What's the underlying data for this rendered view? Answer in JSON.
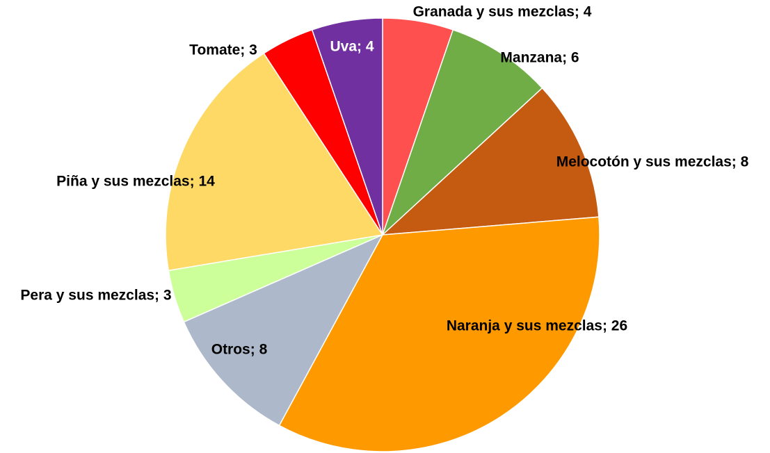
{
  "chart_data": {
    "type": "pie",
    "categories": [
      "Granada y sus mezclas",
      "Manzana",
      "Melocotón y sus mezclas",
      "Naranja y sus mezclas",
      "Otros",
      "Pera y sus mezclas",
      "Piña y sus mezclas",
      "Tomate",
      "Uva"
    ],
    "values": [
      4,
      6,
      8,
      26,
      8,
      3,
      14,
      3,
      4
    ],
    "value_labels": [
      "Granada y sus mezclas; 4",
      "Manzana; 6",
      "Melocotón y sus mezclas; 8",
      "Naranja y sus mezclas; 26",
      "Otros; 8",
      "Pera y sus mezclas; 3",
      "Piña y sus mezclas; 14",
      "Tomate; 3",
      "Uva; 4"
    ],
    "colors": [
      "#ff5050",
      "#70ad47",
      "#c55a11",
      "#ff9900",
      "#adb9ca",
      "#ccff99",
      "#ffd966",
      "#ff0000",
      "#7030a0"
    ]
  }
}
